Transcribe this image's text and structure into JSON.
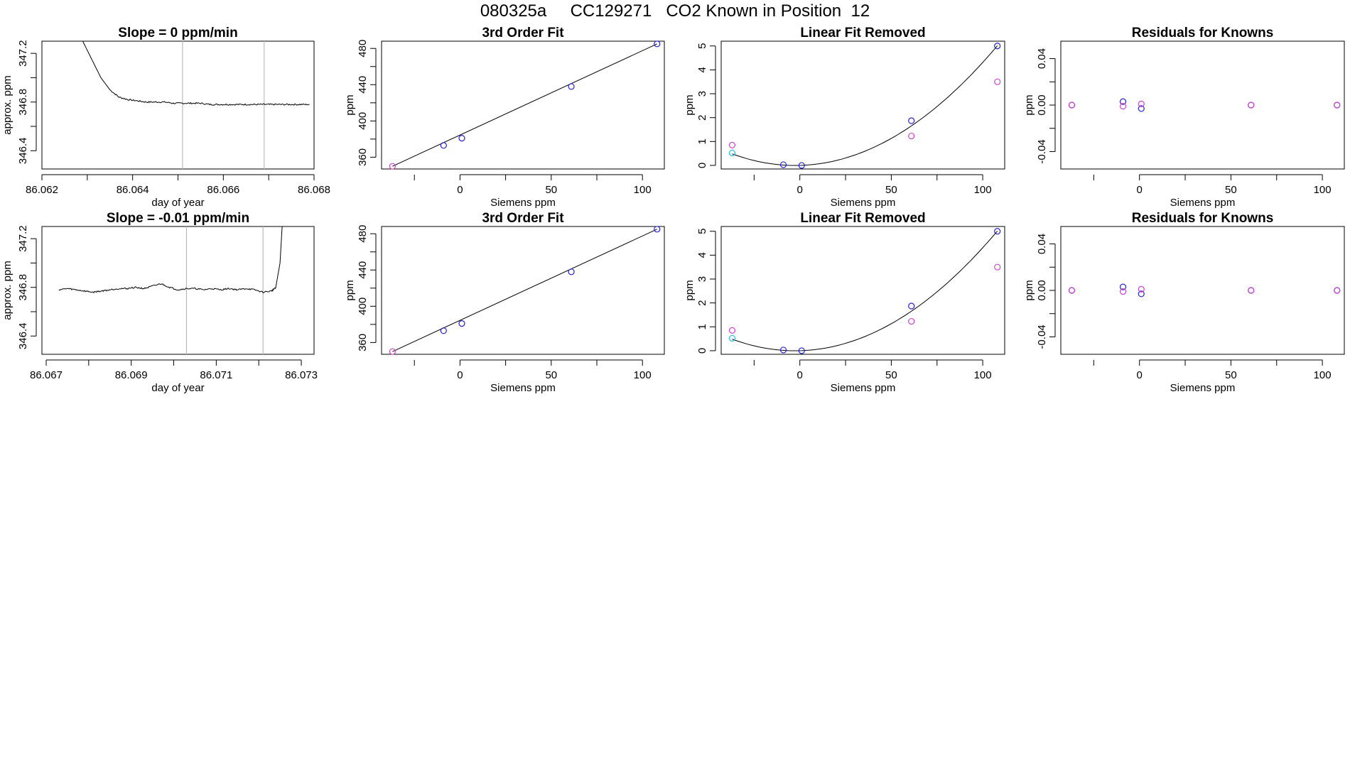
{
  "page": {
    "title": "080325a     CC129271   CO2 Known in Position  12"
  },
  "colors": {
    "line": "#000000",
    "primary_points": "#2222cc",
    "secondary_points": "#cc44cc",
    "tertiary_points": "#22bbdd",
    "vline": "#bbbbbb",
    "noise_red": "#dd3333"
  },
  "chart_data": [
    {
      "type": "line",
      "title": "Slope =  0  ppm/min",
      "xlabel": "day of year",
      "ylabel": "approx. ppm",
      "xlim": [
        86.062,
        86.068
      ],
      "ylim": [
        346.25,
        347.3
      ],
      "xticks": [
        86.062,
        86.064,
        86.066,
        86.068
      ],
      "xtick_labels": [
        "86.062",
        "86.064",
        "86.066",
        "86.068"
      ],
      "xticks_minor": [
        86.063,
        86.065,
        86.067
      ],
      "yticks": [
        346.4,
        346.8,
        347.2
      ],
      "ytick_labels": [
        "346.4",
        "346.8",
        "347.2"
      ],
      "yticks_minor": [
        346.6,
        347.0
      ],
      "vlines": [
        86.0651,
        86.0669
      ],
      "series": [
        {
          "values": [
            [
              86.0629,
              347.3
            ],
            [
              86.0631,
              347.15
            ],
            [
              86.0633,
              347.0
            ],
            [
              86.0635,
              346.9
            ],
            [
              86.0637,
              346.84
            ],
            [
              86.0639,
              346.82
            ],
            [
              86.0641,
              346.81
            ],
            [
              86.0643,
              346.8
            ],
            [
              86.0645,
              346.8
            ],
            [
              86.0647,
              346.8
            ],
            [
              86.0649,
              346.79
            ],
            [
              86.0651,
              346.79
            ],
            [
              86.0653,
              346.79
            ],
            [
              86.0655,
              346.79
            ],
            [
              86.0657,
              346.78
            ],
            [
              86.0659,
              346.78
            ],
            [
              86.0661,
              346.78
            ],
            [
              86.0663,
              346.78
            ],
            [
              86.0665,
              346.78
            ],
            [
              86.0667,
              346.78
            ],
            [
              86.0669,
              346.78
            ],
            [
              86.0671,
              346.78
            ],
            [
              86.0673,
              346.78
            ],
            [
              86.0675,
              346.78
            ],
            [
              86.0677,
              346.78
            ],
            [
              86.0679,
              346.78
            ]
          ]
        }
      ]
    },
    {
      "type": "scatter",
      "title": "3rd Order Fit",
      "xlabel": "Siemens ppm",
      "ylabel": "ppm",
      "xlim": [
        -43,
        112
      ],
      "ylim": [
        347,
        488
      ],
      "xticks": [
        0,
        50,
        100
      ],
      "xtick_labels": [
        "0",
        "50",
        "100"
      ],
      "xticks_minor": [
        -25,
        25,
        75
      ],
      "yticks": [
        360,
        400,
        440,
        480
      ],
      "ytick_labels": [
        "360",
        "400",
        "440",
        "480"
      ],
      "yticks_minor": [
        380,
        420,
        460
      ],
      "fit_line": [
        [
          -37,
          350
        ],
        [
          108,
          485
        ]
      ],
      "points": [
        {
          "x": -37,
          "y": 350,
          "c": "secondary"
        },
        {
          "x": -9,
          "y": 373,
          "c": "primary"
        },
        {
          "x": 1,
          "y": 381,
          "c": "primary"
        },
        {
          "x": 61,
          "y": 438,
          "c": "primary"
        },
        {
          "x": 108,
          "y": 485,
          "c": "primary"
        }
      ]
    },
    {
      "type": "scatter",
      "title": "Linear Fit Removed",
      "xlabel": "Siemens ppm",
      "ylabel": "ppm",
      "xlim": [
        -43,
        112
      ],
      "ylim": [
        -0.15,
        5.2
      ],
      "xticks": [
        0,
        50,
        100
      ],
      "xtick_labels": [
        "0",
        "50",
        "100"
      ],
      "xticks_minor": [
        -25,
        25,
        75
      ],
      "yticks": [
        0,
        1,
        2,
        3,
        4,
        5
      ],
      "ytick_labels": [
        "0",
        "1",
        "2",
        "3",
        "4",
        "5"
      ],
      "curve": {
        "a": 0.00041,
        "b": 0.0021,
        "c": 0.0,
        "from": -37,
        "to": 108
      },
      "points": [
        {
          "x": -37,
          "y": 0.85,
          "c": "secondary"
        },
        {
          "x": -37,
          "y": 0.52,
          "c": "tertiary"
        },
        {
          "x": -9,
          "y": 0.03,
          "c": "primary"
        },
        {
          "x": 1,
          "y": 0.0,
          "c": "primary"
        },
        {
          "x": 61,
          "y": 1.87,
          "c": "primary"
        },
        {
          "x": 61,
          "y": 1.23,
          "c": "secondary"
        },
        {
          "x": 108,
          "y": 5.0,
          "c": "primary"
        },
        {
          "x": 108,
          "y": 3.5,
          "c": "secondary"
        }
      ]
    },
    {
      "type": "scatter",
      "title": "Residuals for Knowns",
      "xlabel": "Siemens ppm",
      "ylabel": "ppm",
      "xlim": [
        -43,
        112
      ],
      "ylim": [
        -0.055,
        0.055
      ],
      "xticks": [
        0,
        50,
        100
      ],
      "xtick_labels": [
        "0",
        "50",
        "100"
      ],
      "xticks_minor": [
        -25,
        25,
        75
      ],
      "yticks": [
        -0.04,
        0.0,
        0.04
      ],
      "ytick_labels": [
        "-0.04",
        "0.00",
        "0.04"
      ],
      "yticks_minor": [
        -0.02,
        0.02
      ],
      "points": [
        {
          "x": -37,
          "y": 0.0,
          "c": "primary"
        },
        {
          "x": -37,
          "y": 0.0,
          "c": "secondary"
        },
        {
          "x": -9,
          "y": 0.003,
          "c": "primary"
        },
        {
          "x": -9,
          "y": -0.001,
          "c": "secondary"
        },
        {
          "x": 1,
          "y": -0.003,
          "c": "primary"
        },
        {
          "x": 1,
          "y": 0.001,
          "c": "secondary"
        },
        {
          "x": 61,
          "y": 0.0,
          "c": "primary"
        },
        {
          "x": 61,
          "y": 0.0,
          "c": "secondary"
        },
        {
          "x": 108,
          "y": 0.0,
          "c": "primary"
        },
        {
          "x": 108,
          "y": 0.0,
          "c": "secondary"
        }
      ]
    },
    {
      "type": "line",
      "title": "Slope =  -0.01  ppm/min",
      "xlabel": "day of year",
      "ylabel": "approx. ppm",
      "xlim": [
        86.0669,
        86.0733
      ],
      "ylim": [
        346.25,
        347.3
      ],
      "xticks": [
        86.067,
        86.069,
        86.071,
        86.073
      ],
      "xtick_labels": [
        "86.067",
        "86.069",
        "86.071",
        "86.073"
      ],
      "xticks_minor": [
        86.068,
        86.07,
        86.072
      ],
      "yticks": [
        346.4,
        346.8,
        347.2
      ],
      "ytick_labels": [
        "346.4",
        "346.8",
        "347.2"
      ],
      "yticks_minor": [
        346.6,
        347.0
      ],
      "vlines": [
        86.0703,
        86.0721
      ],
      "series": [
        {
          "values": [
            [
              86.0673,
              346.78
            ],
            [
              86.0675,
              346.79
            ],
            [
              86.0677,
              346.78
            ],
            [
              86.0679,
              346.77
            ],
            [
              86.0681,
              346.76
            ],
            [
              86.0683,
              346.77
            ],
            [
              86.0685,
              346.78
            ],
            [
              86.0687,
              346.79
            ],
            [
              86.0689,
              346.79
            ],
            [
              86.0691,
              346.8
            ],
            [
              86.0693,
              346.79
            ],
            [
              86.0695,
              346.81
            ],
            [
              86.0697,
              346.83
            ],
            [
              86.0699,
              346.8
            ],
            [
              86.0701,
              346.78
            ],
            [
              86.0703,
              346.79
            ],
            [
              86.0705,
              346.79
            ],
            [
              86.0707,
              346.78
            ],
            [
              86.0709,
              346.79
            ],
            [
              86.0711,
              346.78
            ],
            [
              86.0713,
              346.79
            ],
            [
              86.0715,
              346.78
            ],
            [
              86.0717,
              346.79
            ],
            [
              86.0719,
              346.78
            ],
            [
              86.0721,
              346.76
            ],
            [
              86.0723,
              346.77
            ],
            [
              86.0724,
              346.8
            ],
            [
              86.0725,
              347.0
            ],
            [
              86.07255,
              347.3
            ]
          ]
        }
      ]
    },
    {
      "type": "scatter",
      "title": "3rd Order Fit",
      "xlabel": "Siemens ppm",
      "ylabel": "ppm",
      "xlim": [
        -43,
        112
      ],
      "ylim": [
        347,
        488
      ],
      "xticks": [
        0,
        50,
        100
      ],
      "xtick_labels": [
        "0",
        "50",
        "100"
      ],
      "xticks_minor": [
        -25,
        25,
        75
      ],
      "yticks": [
        360,
        400,
        440,
        480
      ],
      "ytick_labels": [
        "360",
        "400",
        "440",
        "480"
      ],
      "yticks_minor": [
        380,
        420,
        460
      ],
      "fit_line": [
        [
          -37,
          350
        ],
        [
          108,
          485
        ]
      ],
      "points": [
        {
          "x": -37,
          "y": 350,
          "c": "secondary"
        },
        {
          "x": -9,
          "y": 373,
          "c": "primary"
        },
        {
          "x": 1,
          "y": 381,
          "c": "primary"
        },
        {
          "x": 61,
          "y": 438,
          "c": "primary"
        },
        {
          "x": 108,
          "y": 485,
          "c": "primary"
        }
      ]
    },
    {
      "type": "scatter",
      "title": "Linear Fit Removed",
      "xlabel": "Siemens ppm",
      "ylabel": "ppm",
      "xlim": [
        -43,
        112
      ],
      "ylim": [
        -0.15,
        5.2
      ],
      "xticks": [
        0,
        50,
        100
      ],
      "xtick_labels": [
        "0",
        "50",
        "100"
      ],
      "xticks_minor": [
        -25,
        25,
        75
      ],
      "yticks": [
        0,
        1,
        2,
        3,
        4,
        5
      ],
      "ytick_labels": [
        "0",
        "1",
        "2",
        "3",
        "4",
        "5"
      ],
      "curve": {
        "a": 0.00041,
        "b": 0.0021,
        "c": 0.0,
        "from": -37,
        "to": 108
      },
      "points": [
        {
          "x": -37,
          "y": 0.85,
          "c": "secondary"
        },
        {
          "x": -37,
          "y": 0.52,
          "c": "tertiary"
        },
        {
          "x": -9,
          "y": 0.03,
          "c": "primary"
        },
        {
          "x": 1,
          "y": 0.0,
          "c": "primary"
        },
        {
          "x": 61,
          "y": 1.87,
          "c": "primary"
        },
        {
          "x": 61,
          "y": 1.23,
          "c": "secondary"
        },
        {
          "x": 108,
          "y": 5.0,
          "c": "primary"
        },
        {
          "x": 108,
          "y": 3.5,
          "c": "secondary"
        }
      ]
    },
    {
      "type": "scatter",
      "title": "Residuals for Knowns",
      "xlabel": "Siemens ppm",
      "ylabel": "ppm",
      "xlim": [
        -43,
        112
      ],
      "ylim": [
        -0.055,
        0.055
      ],
      "xticks": [
        0,
        50,
        100
      ],
      "xtick_labels": [
        "0",
        "50",
        "100"
      ],
      "xticks_minor": [
        -25,
        25,
        75
      ],
      "yticks": [
        -0.04,
        0.0,
        0.04
      ],
      "ytick_labels": [
        "-0.04",
        "0.00",
        "0.04"
      ],
      "yticks_minor": [
        -0.02,
        0.02
      ],
      "points": [
        {
          "x": -37,
          "y": 0.0,
          "c": "primary"
        },
        {
          "x": -37,
          "y": 0.0,
          "c": "secondary"
        },
        {
          "x": -9,
          "y": 0.003,
          "c": "primary"
        },
        {
          "x": -9,
          "y": -0.001,
          "c": "secondary"
        },
        {
          "x": 1,
          "y": -0.003,
          "c": "primary"
        },
        {
          "x": 1,
          "y": 0.001,
          "c": "secondary"
        },
        {
          "x": 61,
          "y": 0.0,
          "c": "primary"
        },
        {
          "x": 61,
          "y": 0.0,
          "c": "secondary"
        },
        {
          "x": 108,
          "y": 0.0,
          "c": "primary"
        },
        {
          "x": 108,
          "y": 0.0,
          "c": "secondary"
        }
      ]
    }
  ]
}
